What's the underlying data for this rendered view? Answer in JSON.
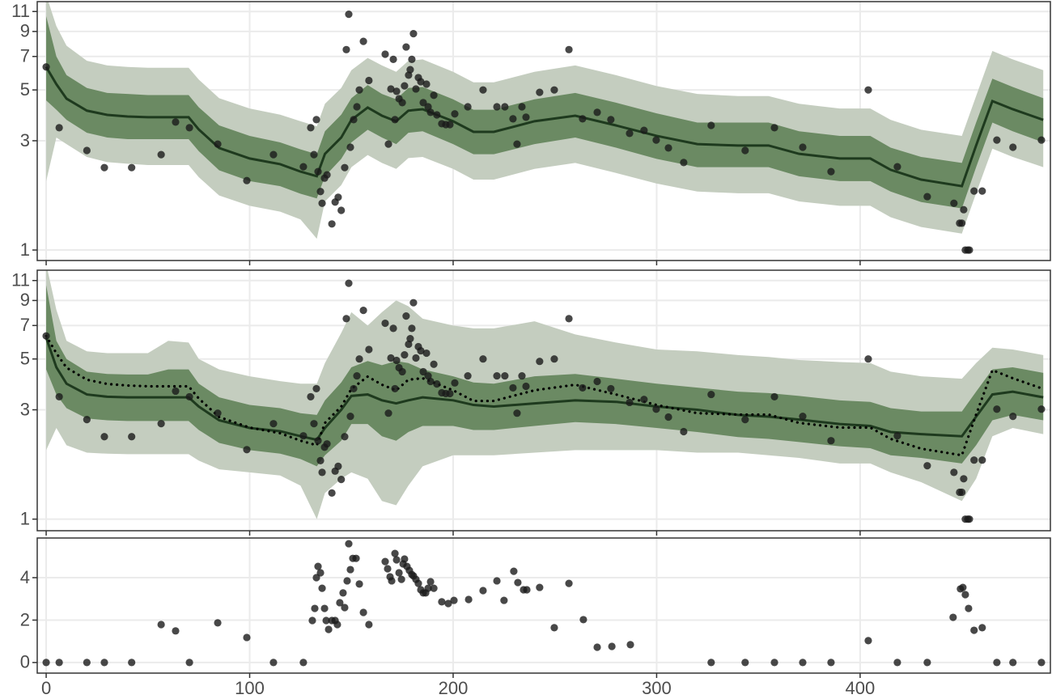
{
  "chart_data": [
    {
      "type": "band",
      "log_scale": true,
      "grid": true,
      "xlim": [
        -4.4,
        493.5
      ],
      "xticks": [
        0,
        100,
        200,
        300,
        400
      ],
      "ylim": [
        0.9,
        12.15
      ],
      "yticks": [
        1,
        3,
        5,
        7,
        9,
        11
      ],
      "colors": {
        "outer": "#c4cdbf",
        "inner": "#6b8a63",
        "line": "#1e3a1e",
        "points": "#1a1a1a"
      },
      "x": [
        0,
        5,
        10,
        20,
        30,
        40,
        50,
        60,
        70,
        75,
        85,
        100,
        115,
        125,
        133,
        137,
        145,
        150,
        158,
        165,
        172,
        178,
        185,
        200,
        210,
        220,
        240,
        260,
        280,
        300,
        320,
        340,
        355,
        370,
        390,
        405,
        415,
        430,
        450,
        457,
        465,
        475,
        490
      ],
      "line": [
        6.3,
        5.3,
        4.58,
        4.06,
        3.89,
        3.83,
        3.8,
        3.8,
        3.8,
        3.36,
        2.79,
        2.51,
        2.37,
        2.2,
        2.1,
        2.63,
        3.1,
        3.7,
        4.19,
        3.86,
        3.65,
        4.06,
        4.12,
        3.65,
        3.28,
        3.28,
        3.65,
        3.86,
        3.5,
        3.15,
        2.9,
        2.86,
        2.86,
        2.63,
        2.51,
        2.51,
        2.24,
        2.03,
        1.9,
        2.86,
        4.47,
        4.12,
        3.7
      ],
      "inner_band": {
        "lower": [
          4.5,
          4.1,
          3.7,
          3.25,
          3.1,
          3.05,
          3.05,
          3.05,
          3.05,
          2.7,
          2.23,
          2.0,
          1.9,
          1.76,
          1.68,
          2.1,
          2.5,
          2.95,
          3.35,
          3.1,
          2.9,
          3.25,
          3.3,
          2.9,
          2.62,
          2.62,
          2.9,
          3.1,
          2.8,
          2.5,
          2.3,
          2.3,
          2.3,
          2.1,
          2.0,
          2.0,
          1.8,
          1.62,
          1.52,
          2.3,
          3.6,
          3.3,
          2.95
        ],
        "upper": [
          10.5,
          7.0,
          5.8,
          5.1,
          4.85,
          4.8,
          4.75,
          4.75,
          4.75,
          4.2,
          3.5,
          3.15,
          2.95,
          2.75,
          2.62,
          3.3,
          3.9,
          4.6,
          5.25,
          4.8,
          4.55,
          5.1,
          5.15,
          4.55,
          4.1,
          4.1,
          4.55,
          4.85,
          4.4,
          3.95,
          3.6,
          3.6,
          3.6,
          3.3,
          3.15,
          3.15,
          2.8,
          2.55,
          2.4,
          3.6,
          5.6,
          5.15,
          4.6
        ]
      },
      "outer_band": {
        "lower": [
          2.0,
          3.1,
          2.9,
          2.55,
          2.42,
          2.38,
          2.35,
          2.35,
          2.35,
          2.08,
          1.73,
          1.56,
          1.47,
          1.36,
          1.12,
          1.63,
          1.92,
          2.3,
          2.6,
          2.4,
          2.26,
          2.52,
          2.55,
          2.26,
          2.03,
          2.03,
          2.26,
          2.4,
          2.17,
          1.95,
          1.8,
          1.77,
          1.77,
          1.63,
          1.56,
          1.56,
          1.39,
          1.26,
          1.18,
          1.77,
          2.77,
          2.55,
          2.3
        ],
        "upper": [
          13,
          9.5,
          7.8,
          6.7,
          6.4,
          6.3,
          6.25,
          6.25,
          6.25,
          5.55,
          4.6,
          4.15,
          3.9,
          3.65,
          3.47,
          4.35,
          5.1,
          6.1,
          6.9,
          6.4,
          6.0,
          6.7,
          6.8,
          6.0,
          5.4,
          5.4,
          6.0,
          6.4,
          5.8,
          5.2,
          4.8,
          4.7,
          4.7,
          4.35,
          4.15,
          4.15,
          3.7,
          3.35,
          3.15,
          4.7,
          7.4,
          6.8,
          6.1
        ]
      },
      "points": {
        "x": [
          0,
          6.4,
          20,
          28.6,
          42,
          56.5,
          63.6,
          70.4,
          84.3,
          98.6,
          111.7,
          126.4,
          130,
          131.6,
          132.8,
          133.6,
          134.8,
          135.6,
          136.8,
          138,
          140.4,
          142,
          143.5,
          145,
          146.7,
          147.5,
          148.7,
          149.5,
          151.1,
          152.7,
          153.9,
          155.9,
          158.6,
          166.6,
          168.2,
          169.4,
          170.6,
          171.4,
          172.2,
          173.4,
          175,
          176.1,
          176.9,
          178.1,
          178.9,
          179.7,
          180.5,
          181.7,
          182.9,
          184.1,
          185.3,
          186.9,
          187.7,
          188.9,
          190.5,
          192,
          194.4,
          196.4,
          198.4,
          200.8,
          207.2,
          214.7,
          221.5,
          225.4,
          229.4,
          231.4,
          233.8,
          235.8,
          242.5,
          249.7,
          256.9,
          263.6,
          270.8,
          277.5,
          286.7,
          293.8,
          299.8,
          305.8,
          313.3,
          326.8,
          343.5,
          357.9,
          371.8,
          385.7,
          404,
          418.3,
          433,
          446.1,
          448.9,
          450,
          450.9,
          451.7,
          452.9,
          453.7,
          456,
          460,
          467.2,
          475.1,
          489.1
        ],
        "values": [
          6.3,
          3.42,
          2.72,
          2.29,
          2.29,
          2.61,
          3.62,
          3.42,
          2.9,
          2.01,
          2.61,
          2.31,
          3.42,
          2.61,
          3.71,
          2.2,
          1.8,
          1.6,
          2.06,
          2.13,
          1.3,
          1.62,
          1.7,
          1.49,
          2.29,
          7.5,
          10.7,
          2.81,
          3.71,
          4.22,
          5.0,
          8.15,
          5.5,
          7.16,
          2.9,
          5.05,
          6.8,
          3.71,
          4.93,
          4.58,
          4.4,
          5.21,
          7.7,
          5.8,
          6.13,
          6.8,
          8.8,
          5.05,
          5.66,
          5.43,
          4.4,
          5.3,
          4.22,
          3.99,
          4.74,
          3.89,
          3.56,
          3.53,
          3.53,
          3.93,
          4.22,
          5.0,
          4.22,
          4.22,
          3.74,
          2.9,
          4.22,
          3.8,
          4.88,
          5.0,
          7.5,
          3.74,
          3.99,
          3.71,
          3.23,
          3.33,
          3.02,
          2.79,
          2.41,
          3.5,
          2.72,
          3.42,
          2.81,
          2.2,
          5.0,
          2.31,
          1.71,
          1.6,
          1.31,
          1.31,
          1.5,
          1.0,
          1.0,
          1.0,
          1.81,
          1.81,
          3.02,
          2.81,
          3.02
        ]
      }
    },
    {
      "type": "band",
      "log_scale": true,
      "grid": true,
      "xlim": [
        -4.4,
        493.5
      ],
      "xticks": [
        0,
        100,
        200,
        300,
        400
      ],
      "ylim": [
        0.89,
        12.2
      ],
      "yticks": [
        1,
        3,
        5,
        7,
        9,
        11
      ],
      "colors": {
        "outer": "#c4cdbf",
        "inner": "#6b8a63",
        "line": "#1e3a1e",
        "dotted": "#000000",
        "points": "#1a1a1a"
      },
      "x": [
        0,
        5,
        10,
        20,
        30,
        40,
        50,
        60,
        70,
        75,
        85,
        100,
        115,
        125,
        133,
        137,
        145,
        150,
        158,
        165,
        172,
        178,
        185,
        200,
        210,
        220,
        240,
        260,
        280,
        300,
        320,
        340,
        355,
        370,
        390,
        405,
        415,
        430,
        450,
        457,
        465,
        475,
        490
      ],
      "line": [
        6.2,
        4.6,
        3.9,
        3.5,
        3.42,
        3.4,
        3.4,
        3.4,
        3.4,
        3.1,
        2.7,
        2.5,
        2.42,
        2.3,
        2.22,
        2.5,
        3.0,
        3.45,
        3.5,
        3.3,
        3.2,
        3.3,
        3.4,
        3.3,
        3.15,
        3.1,
        3.2,
        3.3,
        3.25,
        3.1,
        3.0,
        2.85,
        2.8,
        2.72,
        2.6,
        2.55,
        2.4,
        2.35,
        2.3,
        2.8,
        3.5,
        3.6,
        3.4
      ],
      "dotted_line": [
        6.3,
        5.3,
        4.58,
        4.06,
        3.89,
        3.83,
        3.8,
        3.8,
        3.8,
        3.36,
        2.79,
        2.51,
        2.37,
        2.2,
        2.1,
        2.63,
        3.1,
        3.7,
        4.19,
        3.86,
        3.65,
        4.06,
        4.12,
        3.65,
        3.28,
        3.28,
        3.65,
        3.86,
        3.5,
        3.15,
        2.9,
        2.86,
        2.86,
        2.63,
        2.51,
        2.51,
        2.24,
        2.03,
        1.9,
        2.86,
        4.47,
        4.12,
        3.7
      ],
      "inner_band": {
        "lower": [
          4.5,
          3.5,
          3.05,
          2.75,
          2.7,
          2.68,
          2.68,
          2.68,
          2.68,
          2.45,
          2.15,
          2.0,
          1.93,
          1.83,
          1.7,
          1.9,
          2.2,
          2.6,
          2.6,
          2.3,
          2.2,
          2.4,
          2.55,
          2.55,
          2.45,
          2.45,
          2.55,
          2.65,
          2.6,
          2.5,
          2.4,
          2.28,
          2.24,
          2.17,
          2.08,
          2.04,
          1.9,
          1.85,
          1.75,
          2.1,
          2.7,
          2.85,
          2.7
        ],
        "upper": [
          10.5,
          6.0,
          5.0,
          4.4,
          4.3,
          4.28,
          4.28,
          4.5,
          4.5,
          3.9,
          3.4,
          3.15,
          3.05,
          2.9,
          2.85,
          3.3,
          3.95,
          4.6,
          4.9,
          4.7,
          4.9,
          4.8,
          4.5,
          4.2,
          3.95,
          3.9,
          4.2,
          4.3,
          4.1,
          3.9,
          3.75,
          3.6,
          3.55,
          3.45,
          3.3,
          3.25,
          3.05,
          2.95,
          2.95,
          3.6,
          4.5,
          4.6,
          4.35
        ]
      },
      "outer_band": {
        "lower": [
          2.0,
          2.5,
          2.1,
          1.95,
          1.93,
          1.92,
          1.92,
          1.92,
          1.92,
          1.8,
          1.65,
          1.6,
          1.55,
          1.4,
          1.0,
          1.3,
          1.5,
          1.6,
          1.5,
          1.2,
          1.15,
          1.4,
          1.7,
          1.9,
          1.9,
          1.9,
          1.95,
          2.0,
          2.0,
          2.0,
          1.95,
          1.95,
          1.9,
          1.85,
          1.75,
          1.75,
          1.6,
          1.45,
          1.2,
          1.5,
          2.3,
          2.5,
          2.35
        ],
        "upper": [
          13,
          8.2,
          6.0,
          5.4,
          5.3,
          5.3,
          5.3,
          6.0,
          5.9,
          5.0,
          4.5,
          4.2,
          4.0,
          3.9,
          3.9,
          4.8,
          6.5,
          8.0,
          7.0,
          8.0,
          9.0,
          8.5,
          7.5,
          7.0,
          6.8,
          6.8,
          7.3,
          6.4,
          5.9,
          5.5,
          5.4,
          5.2,
          5.1,
          4.95,
          4.85,
          4.8,
          4.4,
          4.2,
          4.1,
          4.8,
          5.6,
          5.5,
          5.2
        ]
      },
      "points": {
        "x": [
          0,
          6.4,
          20,
          28.6,
          42,
          56.5,
          63.6,
          70.4,
          84.3,
          98.6,
          111.7,
          126.4,
          130,
          131.6,
          132.8,
          133.6,
          134.8,
          135.6,
          136.8,
          138,
          140.4,
          142,
          143.5,
          145,
          146.7,
          147.5,
          148.7,
          149.5,
          151.1,
          152.7,
          153.9,
          155.9,
          158.6,
          166.6,
          168.2,
          169.4,
          170.6,
          171.4,
          172.2,
          173.4,
          175,
          176.1,
          176.9,
          178.1,
          178.9,
          179.7,
          180.5,
          181.7,
          182.9,
          184.1,
          185.3,
          186.9,
          187.7,
          188.9,
          190.5,
          192,
          194.4,
          196.4,
          198.4,
          200.8,
          207.2,
          214.7,
          221.5,
          225.4,
          229.4,
          231.4,
          233.8,
          235.8,
          242.5,
          249.7,
          256.9,
          263.6,
          270.8,
          277.5,
          286.7,
          293.8,
          299.8,
          305.8,
          313.3,
          326.8,
          343.5,
          357.9,
          371.8,
          385.7,
          404,
          418.3,
          433,
          446.1,
          448.9,
          450,
          450.9,
          451.7,
          452.9,
          453.7,
          456,
          460,
          467.2,
          475.1,
          489.1
        ],
        "values": [
          6.3,
          3.42,
          2.72,
          2.29,
          2.29,
          2.61,
          3.62,
          3.42,
          2.9,
          2.01,
          2.61,
          2.31,
          3.42,
          2.61,
          3.71,
          2.2,
          1.8,
          1.6,
          2.06,
          2.13,
          1.3,
          1.62,
          1.7,
          1.49,
          2.29,
          7.5,
          10.7,
          2.81,
          3.71,
          4.22,
          5.0,
          8.15,
          5.5,
          7.16,
          2.9,
          5.05,
          6.8,
          3.71,
          4.93,
          4.58,
          4.4,
          5.21,
          7.7,
          5.8,
          6.13,
          6.8,
          8.8,
          5.05,
          5.66,
          5.43,
          4.4,
          5.3,
          4.22,
          3.99,
          4.74,
          3.89,
          3.56,
          3.53,
          3.53,
          3.93,
          4.22,
          5.0,
          4.22,
          4.22,
          3.74,
          2.9,
          4.22,
          3.8,
          4.88,
          5.0,
          7.5,
          3.74,
          3.99,
          3.71,
          3.23,
          3.33,
          3.02,
          2.79,
          2.41,
          3.5,
          2.72,
          3.42,
          2.81,
          2.2,
          5.0,
          2.31,
          1.71,
          1.6,
          1.31,
          1.31,
          1.5,
          1.0,
          1.0,
          1.0,
          1.81,
          1.81,
          3.02,
          2.81,
          3.02
        ]
      }
    },
    {
      "type": "scatter",
      "log_scale": false,
      "grid": true,
      "xlim": [
        -4.4,
        493.5
      ],
      "xticks": [
        0,
        100,
        200,
        300,
        400
      ],
      "ylim": [
        -0.5,
        5.87
      ],
      "yticks": [
        0,
        2,
        4
      ],
      "colors": {
        "points": "#1a1a1a"
      },
      "points": {
        "x": [
          0,
          6.4,
          20,
          28.6,
          42,
          56.5,
          63.6,
          70.4,
          84.3,
          98.6,
          111.7,
          126.4,
          130.8,
          132,
          132.8,
          133.6,
          134.8,
          135.6,
          136.8,
          137.6,
          138.8,
          140.4,
          142,
          143.1,
          144.3,
          145.9,
          146.7,
          147.9,
          148.7,
          149.5,
          150.7,
          152.3,
          153.9,
          155.9,
          158.6,
          166.6,
          167.8,
          169,
          169.8,
          171.4,
          172.2,
          173.4,
          174.6,
          175.4,
          176.1,
          177.3,
          178.5,
          179.7,
          180.5,
          181.7,
          182.9,
          184.1,
          185.3,
          186.5,
          187.7,
          188.9,
          190.5,
          194.4,
          197.6,
          200.4,
          207.6,
          214.7,
          221.5,
          225,
          229.8,
          231.8,
          234.6,
          236.2,
          242.5,
          249.7,
          256.9,
          264,
          270.8,
          278,
          287.1,
          326.8,
          343.5,
          357.9,
          371.8,
          385.7,
          404,
          418.3,
          433,
          445.7,
          449.3,
          450.5,
          451.7,
          453.3,
          456,
          460,
          467.2,
          475.1,
          489.1
        ],
        "values": [
          0,
          0,
          0,
          0,
          0,
          1.79,
          1.49,
          0,
          1.87,
          1.18,
          0,
          0,
          1.98,
          2.55,
          4.0,
          4.53,
          4.23,
          3.5,
          2.55,
          1.98,
          1.56,
          1.98,
          1.98,
          1.79,
          2.82,
          3.28,
          2.59,
          3.85,
          5.6,
          4.38,
          4.91,
          4.91,
          3.7,
          2.36,
          1.79,
          4.76,
          4.42,
          4.04,
          3.85,
          5.14,
          4.84,
          4.23,
          3.92,
          4.65,
          4.88,
          4.53,
          4.34,
          4.15,
          4.08,
          3.92,
          3.73,
          3.43,
          3.28,
          3.28,
          3.5,
          3.81,
          3.5,
          2.86,
          2.78,
          2.93,
          2.97,
          3.39,
          3.85,
          2.93,
          4.3,
          3.77,
          3.43,
          3.43,
          3.54,
          1.64,
          3.73,
          2.02,
          0.72,
          0.76,
          0.84,
          0,
          0,
          0,
          0,
          0,
          1.03,
          0,
          0,
          2.13,
          3.47,
          3.54,
          3.2,
          2.55,
          1.52,
          1.64,
          0,
          0,
          0
        ]
      }
    }
  ]
}
